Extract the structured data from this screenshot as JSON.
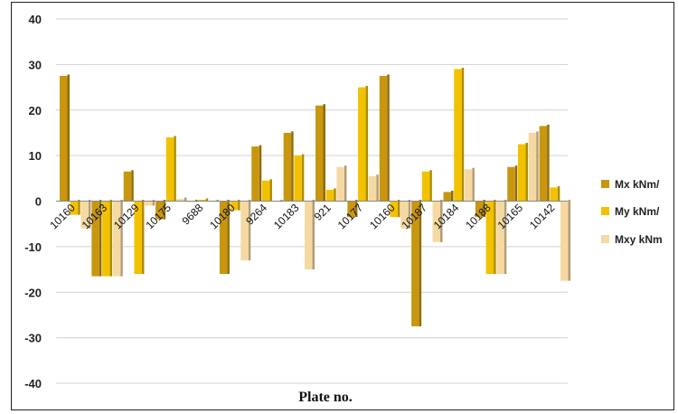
{
  "chart_data": {
    "type": "bar",
    "title": "",
    "xlabel": "Plate no.",
    "ylabel": "",
    "ylim": [
      -40,
      40
    ],
    "yticks": [
      40,
      30,
      20,
      10,
      0,
      -10,
      -20,
      -30,
      -40
    ],
    "grid": "horizontal",
    "legend_position": "right",
    "categories": [
      "10160",
      "10163",
      "10129",
      "10175",
      "9688",
      "10180",
      "9264",
      "10183",
      "921",
      "10177",
      "10160",
      "10187",
      "10184",
      "10188",
      "10165",
      "10142"
    ],
    "series": [
      {
        "name": "Mx kNm/",
        "color": "#C8960F",
        "values": [
          27.5,
          -16.5,
          6.5,
          -4,
          0,
          -16,
          12,
          15,
          21,
          -3.5,
          27.5,
          -27.5,
          2,
          -3.5,
          7.5,
          16.5
        ]
      },
      {
        "name": "My kNm/",
        "color": "#F2C200",
        "values": [
          -3,
          -16.5,
          -16,
          14,
          0.3,
          -2,
          4.5,
          10,
          2.5,
          25,
          -3.5,
          6.5,
          29,
          -16,
          12.5,
          3
        ]
      },
      {
        "name": "Mxy kNm",
        "color": "#F6D9A2",
        "values": [
          -6,
          -16.5,
          -1,
          0.5,
          0,
          -13,
          0,
          -15,
          7.5,
          5.5,
          -6,
          -9,
          7,
          -16,
          15,
          -17.5
        ]
      }
    ]
  }
}
